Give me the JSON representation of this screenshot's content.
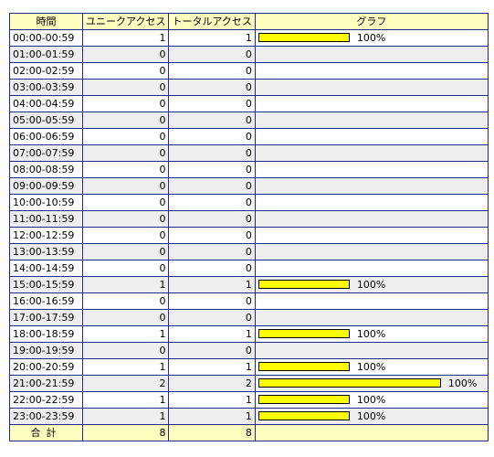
{
  "headers": {
    "time": "時間",
    "unique": "ユニークアクセス",
    "total": "トータルアクセス",
    "graph": "グラフ"
  },
  "colors": {
    "border": "#1c2d8c",
    "header_bg": "#ffffc0",
    "stripe_bg": "#eeeeee",
    "bar_fill": "#ffff00"
  },
  "graph_max_total": 2,
  "rows": [
    {
      "time": "00:00-00:59",
      "unique": 1,
      "total": 1,
      "percent": "100%"
    },
    {
      "time": "01:00-01:59",
      "unique": 0,
      "total": 0,
      "percent": ""
    },
    {
      "time": "02:00-02:59",
      "unique": 0,
      "total": 0,
      "percent": ""
    },
    {
      "time": "03:00-03:59",
      "unique": 0,
      "total": 0,
      "percent": ""
    },
    {
      "time": "04:00-04:59",
      "unique": 0,
      "total": 0,
      "percent": ""
    },
    {
      "time": "05:00-05:59",
      "unique": 0,
      "total": 0,
      "percent": ""
    },
    {
      "time": "06:00-06:59",
      "unique": 0,
      "total": 0,
      "percent": ""
    },
    {
      "time": "07:00-07:59",
      "unique": 0,
      "total": 0,
      "percent": ""
    },
    {
      "time": "08:00-08:59",
      "unique": 0,
      "total": 0,
      "percent": ""
    },
    {
      "time": "09:00-09:59",
      "unique": 0,
      "total": 0,
      "percent": ""
    },
    {
      "time": "10:00-10:59",
      "unique": 0,
      "total": 0,
      "percent": ""
    },
    {
      "time": "11:00-11:59",
      "unique": 0,
      "total": 0,
      "percent": ""
    },
    {
      "time": "12:00-12:59",
      "unique": 0,
      "total": 0,
      "percent": ""
    },
    {
      "time": "13:00-13:59",
      "unique": 0,
      "total": 0,
      "percent": ""
    },
    {
      "time": "14:00-14:59",
      "unique": 0,
      "total": 0,
      "percent": ""
    },
    {
      "time": "15:00-15:59",
      "unique": 1,
      "total": 1,
      "percent": "100%"
    },
    {
      "time": "16:00-16:59",
      "unique": 0,
      "total": 0,
      "percent": ""
    },
    {
      "time": "17:00-17:59",
      "unique": 0,
      "total": 0,
      "percent": ""
    },
    {
      "time": "18:00-18:59",
      "unique": 1,
      "total": 1,
      "percent": "100%"
    },
    {
      "time": "19:00-19:59",
      "unique": 0,
      "total": 0,
      "percent": ""
    },
    {
      "time": "20:00-20:59",
      "unique": 1,
      "total": 1,
      "percent": "100%"
    },
    {
      "time": "21:00-21:59",
      "unique": 2,
      "total": 2,
      "percent": "100%"
    },
    {
      "time": "22:00-22:59",
      "unique": 1,
      "total": 1,
      "percent": "100%"
    },
    {
      "time": "23:00-23:59",
      "unique": 1,
      "total": 1,
      "percent": "100%"
    }
  ],
  "totals": {
    "label": "合計",
    "unique": 8,
    "total": 8
  }
}
